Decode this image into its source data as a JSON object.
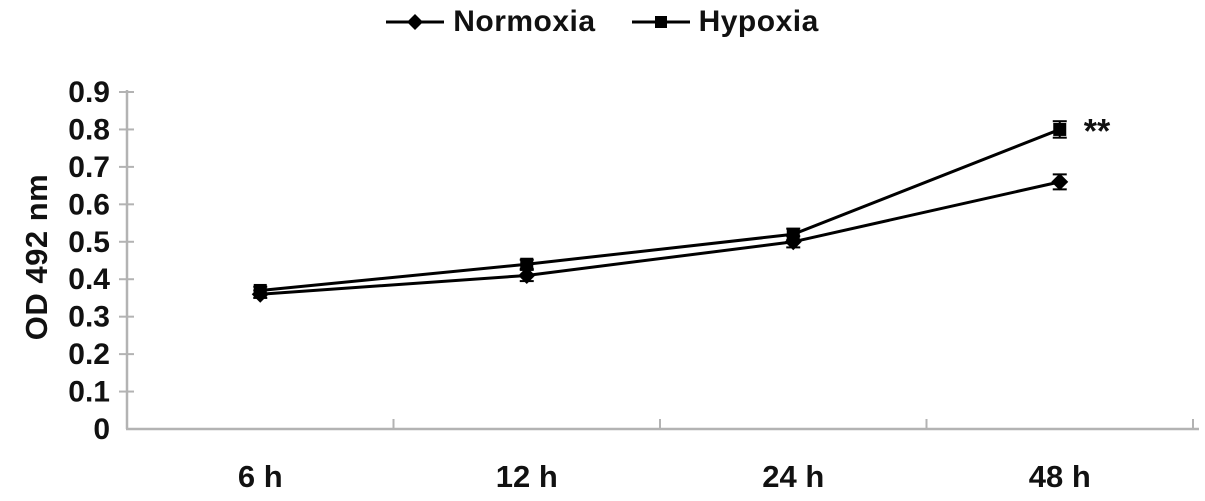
{
  "chart_data": {
    "type": "line",
    "categories": [
      "6 h",
      "12 h",
      "24 h",
      "48 h"
    ],
    "series": [
      {
        "name": "Normoxia",
        "marker": "diamond",
        "values": [
          0.36,
          0.41,
          0.5,
          0.66
        ],
        "errors": [
          0.01,
          0.015,
          0.015,
          0.02
        ]
      },
      {
        "name": "Hypoxia",
        "marker": "square",
        "values": [
          0.37,
          0.44,
          0.52,
          0.8
        ],
        "errors": [
          0.01,
          0.012,
          0.015,
          0.022
        ]
      }
    ],
    "title": "",
    "xlabel": "",
    "ylabel": "OD 492 nm",
    "ylim": [
      0,
      0.9
    ],
    "ytick_step": 0.1,
    "yticks": [
      "0",
      "0.1",
      "0.2",
      "0.3",
      "0.4",
      "0.5",
      "0.6",
      "0.7",
      "0.8",
      "0.9"
    ],
    "legend_position": "top",
    "grid": false,
    "annotations": [
      {
        "text": "**",
        "series": "Hypoxia",
        "category": "48 h"
      }
    ],
    "colors": {
      "series": "#000000",
      "axis": "#b3b3b3",
      "text": "#111111"
    }
  }
}
